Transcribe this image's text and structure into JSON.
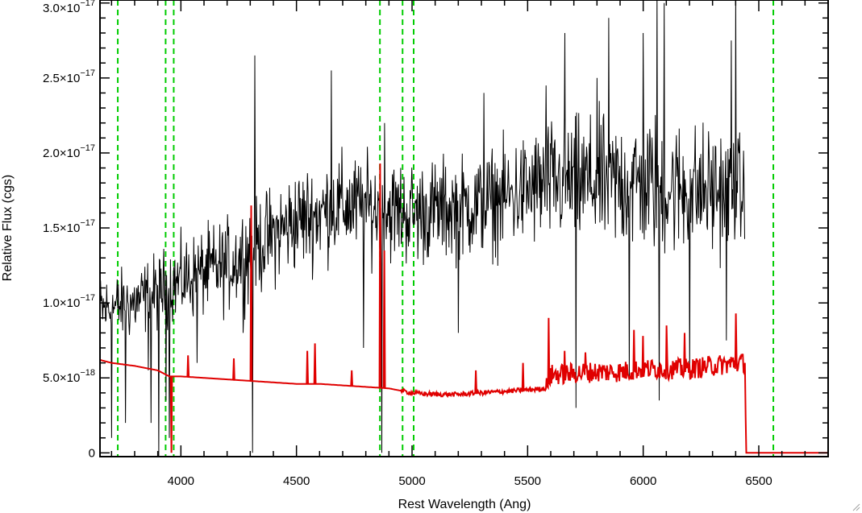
{
  "chart_data": {
    "type": "line",
    "title": "",
    "xlabel": "Rest Wavelength (Ang)",
    "ylabel": "Relative Flux (cgs)",
    "xlim": [
      3650,
      6800
    ],
    "ylim": [
      -2.5e-19,
      3.02e-17
    ],
    "x_ticks": [
      {
        "value": 4000,
        "label": "4000"
      },
      {
        "value": 4500,
        "label": "4500"
      },
      {
        "value": 5000,
        "label": "5000"
      },
      {
        "value": 5500,
        "label": "5500"
      },
      {
        "value": 6000,
        "label": "6000"
      },
      {
        "value": 6500,
        "label": "6500"
      }
    ],
    "y_ticks": [
      {
        "value": 0,
        "mantissa": "0",
        "exp": ""
      },
      {
        "value": 5e-18,
        "mantissa": "5.0×10",
        "exp": "−18"
      },
      {
        "value": 1e-17,
        "mantissa": "1.0×10",
        "exp": "−17"
      },
      {
        "value": 1.5e-17,
        "mantissa": "1.5×10",
        "exp": "−17"
      },
      {
        "value": 2e-17,
        "mantissa": "2.0×10",
        "exp": "−17"
      },
      {
        "value": 2.5e-17,
        "mantissa": "2.5×10",
        "exp": "−17"
      },
      {
        "value": 3e-17,
        "mantissa": "3.0×10",
        "exp": "−17"
      }
    ],
    "series": [
      {
        "role": "observed spectrum",
        "color": "#000000",
        "style": "solid",
        "noise_envelope": {
          "x": [
            3650,
            3800,
            4000,
            4200,
            4500,
            4700,
            5000,
            5300,
            5600,
            5800,
            6000,
            6200,
            6400,
            6440
          ],
          "y_center": [
            9.5e-18,
            1e-17,
            1.15e-17,
            1.25e-17,
            1.55e-17,
            1.65e-17,
            1.6e-17,
            1.65e-17,
            1.8e-17,
            1.8e-17,
            1.8e-17,
            1.75e-17,
            1.75e-17,
            1.7e-17
          ],
          "amplitude": [
            3.5e-18,
            3.5e-18,
            4e-18,
            4.5e-18,
            5e-18,
            5e-18,
            5e-18,
            5e-18,
            6e-18,
            6.5e-18,
            7e-18,
            6.5e-18,
            6e-18,
            5e-18
          ]
        },
        "spikes": [
          {
            "x": 3700,
            "y": 1e-18
          },
          {
            "x": 3760,
            "y": 2e-18
          },
          {
            "x": 3870,
            "y": 2e-18
          },
          {
            "x": 3905,
            "y": -2e-19
          },
          {
            "x": 3935,
            "y": 3.5e-18
          },
          {
            "x": 3950,
            "y": 1e-18
          },
          {
            "x": 4310,
            "y": 0
          },
          {
            "x": 4320,
            "y": 2.65e-17
          },
          {
            "x": 4650,
            "y": 2.55e-17
          },
          {
            "x": 4870,
            "y": 0
          },
          {
            "x": 4880,
            "y": 2.2e-17
          },
          {
            "x": 5310,
            "y": 2.4e-17
          },
          {
            "x": 5580,
            "y": 2.45e-17
          },
          {
            "x": 5660,
            "y": 2.8e-17
          },
          {
            "x": 5800,
            "y": 2.5e-17
          },
          {
            "x": 5850,
            "y": 2.9e-17
          },
          {
            "x": 6000,
            "y": 2.8e-17
          },
          {
            "x": 6060,
            "y": 3.1e-17
          },
          {
            "x": 6090,
            "y": 3e-17
          },
          {
            "x": 6380,
            "y": 2.75e-17
          },
          {
            "x": 6400,
            "y": 3.1e-17
          },
          {
            "x": 5710,
            "y": 3e-18
          },
          {
            "x": 6070,
            "y": 3.5e-18
          },
          {
            "x": 5940,
            "y": 5e-18
          },
          {
            "x": 4790,
            "y": 7e-18
          },
          {
            "x": 5200,
            "y": 8e-18
          },
          {
            "x": 4070,
            "y": 6e-18
          },
          {
            "x": 4270,
            "y": 8e-18
          },
          {
            "x": 3860,
            "y": 5.5e-18
          },
          {
            "x": 6200,
            "y": 5e-18
          },
          {
            "x": 6360,
            "y": 7.5e-18
          }
        ]
      },
      {
        "role": "model / error spectrum",
        "color": "#e00000",
        "style": "solid",
        "x": [
          3650,
          3700,
          3800,
          3900,
          3950,
          4000,
          4100,
          4200,
          4300,
          4400,
          4500,
          4600,
          4700,
          4800,
          4900,
          5000,
          5100,
          5200,
          5300,
          5400,
          5500,
          5580,
          5600,
          5700,
          5800,
          5900,
          6000,
          6100,
          6200,
          6300,
          6400,
          6440,
          6445,
          6800
        ],
        "y": [
          6.2e-18,
          6e-18,
          5.8e-18,
          5.5e-18,
          5.1e-18,
          5.1e-18,
          5e-18,
          4.9e-18,
          4.8e-18,
          4.7e-18,
          4.6e-18,
          4.6e-18,
          4.5e-18,
          4.4e-18,
          4.3e-18,
          4e-18,
          3.9e-18,
          3.9e-18,
          4e-18,
          4.1e-18,
          4.2e-18,
          4.3e-18,
          5.2e-18,
          5.3e-18,
          5.4e-18,
          5.4e-18,
          5.6e-18,
          5.6e-18,
          5.6e-18,
          5.8e-18,
          6e-18,
          6e-18,
          0,
          0
        ],
        "features": [
          {
            "x": 3960,
            "y": 0.0
          },
          {
            "x": 4030,
            "y": 6.5e-18
          },
          {
            "x": 4230,
            "y": 6.3e-18
          },
          {
            "x": 4305,
            "y": 1.65e-17
          },
          {
            "x": 4548,
            "y": 6.8e-18
          },
          {
            "x": 4580,
            "y": 7.3e-18
          },
          {
            "x": 4740,
            "y": 5.5e-18
          },
          {
            "x": 4862,
            "y": 1.93e-17
          },
          {
            "x": 4880,
            "y": 1.35e-17
          },
          {
            "x": 5275,
            "y": 5.5e-18
          },
          {
            "x": 5480,
            "y": 6e-18
          },
          {
            "x": 5590,
            "y": 9e-18
          },
          {
            "x": 5660,
            "y": 6.8e-18
          },
          {
            "x": 5750,
            "y": 6.7e-18
          },
          {
            "x": 5960,
            "y": 8.2e-18
          },
          {
            "x": 6000,
            "y": 7.8e-18
          },
          {
            "x": 6100,
            "y": 8.5e-18
          },
          {
            "x": 6180,
            "y": 8e-18
          },
          {
            "x": 6400,
            "y": 9.3e-18
          }
        ]
      }
    ],
    "reference_lines": {
      "color": "#00cc00",
      "style": "dashed",
      "x": [
        3727,
        3934,
        3969,
        4861,
        4959,
        5007,
        6563
      ]
    },
    "grid": false,
    "legend": "none"
  }
}
